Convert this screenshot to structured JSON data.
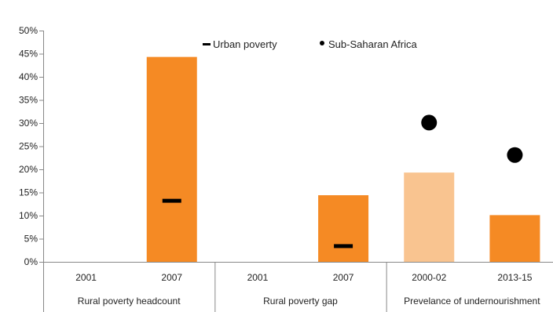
{
  "chart_data": {
    "type": "bar",
    "title": "",
    "xlabel": "",
    "ylabel": "",
    "ylim": [
      0,
      50
    ],
    "ytick_values": [
      0,
      5,
      10,
      15,
      20,
      25,
      30,
      35,
      40,
      45,
      50
    ],
    "ytick_labels": [
      "0%",
      "5%",
      "10%",
      "15%",
      "20%",
      "25%",
      "30%",
      "35%",
      "40%",
      "45%",
      "50%"
    ],
    "categories": [
      "2001",
      "2007",
      "2001",
      "2007",
      "2000-02",
      "2013-15"
    ],
    "groups": [
      {
        "label": "Rural poverty headcount",
        "categories": [
          "2001",
          "2007"
        ]
      },
      {
        "label": "Rural poverty gap",
        "categories": [
          "2001",
          "2007"
        ]
      },
      {
        "label": "Prevelance of undernourishment",
        "categories": [
          "2000-02",
          "2013-15"
        ]
      }
    ],
    "series": [
      {
        "values": [
          0,
          44.3,
          0,
          14.4,
          19.3,
          10.1
        ],
        "colors": [
          "#F58A24",
          "#F58A24",
          "#F58A24",
          "#F58A24",
          "#F9C490",
          "#F58A24"
        ]
      },
      {
        "name": "Urban poverty",
        "marker": "dash",
        "values": [
          null,
          13.2,
          null,
          3.4,
          null,
          null
        ]
      },
      {
        "name": "Sub-Saharan Africa",
        "marker": "dot",
        "values": [
          null,
          null,
          null,
          null,
          30.1,
          23.1
        ]
      }
    ],
    "grid": false,
    "legend_position": "top-center",
    "legend": {
      "urban_label": "Urban poverty",
      "ssa_label": "Sub-Saharan Africa"
    }
  }
}
